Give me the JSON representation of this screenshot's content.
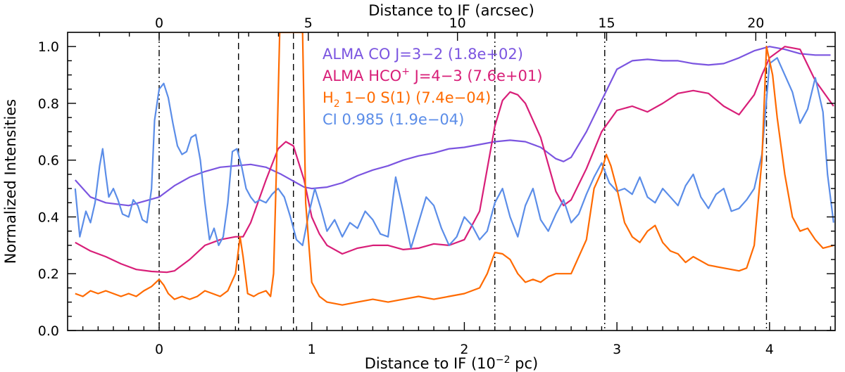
{
  "chart_data": {
    "type": "line",
    "xlabel_bottom": "Distance to IF (10",
    "xlabel_bottom_sup": "−2",
    "xlabel_bottom_end": " pc)",
    "xlabel_top": "Distance to IF (arcsec)",
    "ylabel": "Normalized Intensities",
    "xlim": [
      -0.6,
      4.43
    ],
    "ylim": [
      0.0,
      1.05
    ],
    "x_ticks": [
      0,
      1,
      2,
      3,
      4
    ],
    "x_tick_labels": [
      "0",
      "1",
      "2",
      "3",
      "4"
    ],
    "y_ticks": [
      0.0,
      0.2,
      0.4,
      0.6,
      0.8,
      1.0
    ],
    "y_tick_labels": [
      "0.0",
      "0.2",
      "0.4",
      "0.6",
      "0.8",
      "1.0"
    ],
    "top_ticks_pc": [
      0,
      0.9775,
      1.955,
      2.9325,
      3.91
    ],
    "top_tick_labels": [
      "0",
      "5",
      "10",
      "15",
      "20"
    ],
    "grid": false,
    "legend_position": "top-center",
    "vertical_lines": [
      {
        "x": 0.0,
        "style": "dashdot"
      },
      {
        "x": 0.52,
        "style": "dashed"
      },
      {
        "x": 0.88,
        "style": "dashed"
      },
      {
        "x": 2.2,
        "style": "dashdot"
      },
      {
        "x": 2.92,
        "style": "dashdot"
      },
      {
        "x": 3.98,
        "style": "dashdot"
      }
    ],
    "series": [
      {
        "name": "ALMA CO J=3−2",
        "name_html": "ALMA CO J=3−2 (1.8e+02)",
        "label_parts": [
          "ALMA CO J=3−2 (1.8e+02)"
        ],
        "color": "#7b55e0",
        "x": [
          -0.55,
          -0.45,
          -0.35,
          -0.2,
          -0.1,
          0.0,
          0.1,
          0.2,
          0.3,
          0.4,
          0.5,
          0.6,
          0.7,
          0.8,
          0.9,
          0.95,
          1.0,
          1.1,
          1.2,
          1.3,
          1.4,
          1.5,
          1.6,
          1.7,
          1.8,
          1.9,
          2.0,
          2.1,
          2.2,
          2.3,
          2.4,
          2.5,
          2.6,
          2.65,
          2.7,
          2.8,
          2.9,
          3.0,
          3.1,
          3.2,
          3.3,
          3.4,
          3.5,
          3.6,
          3.7,
          3.8,
          3.9,
          4.0,
          4.1,
          4.2,
          4.3,
          4.4
        ],
        "y": [
          0.53,
          0.47,
          0.45,
          0.44,
          0.455,
          0.47,
          0.51,
          0.54,
          0.56,
          0.575,
          0.58,
          0.585,
          0.575,
          0.55,
          0.52,
          0.505,
          0.5,
          0.505,
          0.52,
          0.545,
          0.565,
          0.58,
          0.6,
          0.615,
          0.625,
          0.64,
          0.645,
          0.655,
          0.665,
          0.67,
          0.665,
          0.645,
          0.605,
          0.595,
          0.61,
          0.7,
          0.81,
          0.92,
          0.95,
          0.955,
          0.95,
          0.95,
          0.94,
          0.935,
          0.94,
          0.96,
          0.985,
          1.0,
          0.99,
          0.975,
          0.97,
          0.97
        ]
      },
      {
        "name": "ALMA HCO+ J=4−3",
        "label_parts": [
          "ALMA HCO",
          "+",
          " J=4−3 (7.6e+01)"
        ],
        "color": "#d81e78",
        "x": [
          -0.55,
          -0.45,
          -0.35,
          -0.25,
          -0.15,
          -0.05,
          0.05,
          0.1,
          0.2,
          0.3,
          0.4,
          0.5,
          0.55,
          0.6,
          0.7,
          0.78,
          0.83,
          0.88,
          0.95,
          1.0,
          1.05,
          1.1,
          1.2,
          1.3,
          1.4,
          1.5,
          1.6,
          1.7,
          1.8,
          1.9,
          2.0,
          2.1,
          2.2,
          2.25,
          2.3,
          2.35,
          2.4,
          2.5,
          2.6,
          2.65,
          2.7,
          2.8,
          2.9,
          3.0,
          3.1,
          3.2,
          3.3,
          3.4,
          3.5,
          3.6,
          3.7,
          3.8,
          3.9,
          3.95,
          4.0,
          4.1,
          4.2,
          4.3,
          4.42
        ],
        "y": [
          0.31,
          0.28,
          0.26,
          0.235,
          0.215,
          0.208,
          0.205,
          0.21,
          0.25,
          0.3,
          0.32,
          0.33,
          0.33,
          0.38,
          0.53,
          0.64,
          0.665,
          0.65,
          0.53,
          0.4,
          0.34,
          0.3,
          0.27,
          0.29,
          0.3,
          0.3,
          0.285,
          0.29,
          0.305,
          0.3,
          0.32,
          0.42,
          0.72,
          0.81,
          0.84,
          0.83,
          0.8,
          0.68,
          0.49,
          0.44,
          0.46,
          0.57,
          0.7,
          0.775,
          0.79,
          0.77,
          0.8,
          0.835,
          0.845,
          0.835,
          0.79,
          0.76,
          0.83,
          0.9,
          0.96,
          1.0,
          0.99,
          0.88,
          0.79
        ]
      },
      {
        "name": "H2 1-0 S(1)",
        "label_parts": [
          "H",
          "2",
          " 1−0 S(1) (7.4e−04)"
        ],
        "color": "#ff6a00",
        "x": [
          -0.55,
          -0.5,
          -0.45,
          -0.4,
          -0.35,
          -0.3,
          -0.25,
          -0.2,
          -0.15,
          -0.1,
          -0.05,
          0.0,
          0.03,
          0.06,
          0.1,
          0.15,
          0.2,
          0.25,
          0.3,
          0.35,
          0.4,
          0.45,
          0.5,
          0.53,
          0.55,
          0.58,
          0.62,
          0.65,
          0.7,
          0.73,
          0.75,
          0.77,
          0.79,
          0.81,
          0.83,
          0.86,
          0.88,
          0.9,
          0.92,
          0.94,
          0.96,
          1.0,
          1.05,
          1.1,
          1.2,
          1.3,
          1.4,
          1.5,
          1.6,
          1.7,
          1.8,
          1.9,
          2.0,
          2.1,
          2.15,
          2.2,
          2.25,
          2.3,
          2.35,
          2.4,
          2.45,
          2.5,
          2.55,
          2.6,
          2.7,
          2.8,
          2.85,
          2.9,
          2.93,
          2.96,
          3.0,
          3.05,
          3.1,
          3.15,
          3.2,
          3.25,
          3.3,
          3.35,
          3.4,
          3.45,
          3.5,
          3.6,
          3.7,
          3.8,
          3.85,
          3.9,
          3.95,
          3.98,
          4.02,
          4.05,
          4.1,
          4.15,
          4.2,
          4.25,
          4.3,
          4.35,
          4.42
        ],
        "y": [
          0.13,
          0.12,
          0.14,
          0.13,
          0.14,
          0.13,
          0.12,
          0.13,
          0.12,
          0.14,
          0.155,
          0.18,
          0.16,
          0.13,
          0.11,
          0.12,
          0.11,
          0.12,
          0.14,
          0.13,
          0.12,
          0.14,
          0.2,
          0.33,
          0.26,
          0.13,
          0.12,
          0.13,
          0.14,
          0.12,
          0.2,
          0.6,
          1.05,
          1.05,
          1.05,
          1.05,
          1.05,
          1.05,
          1.05,
          1.05,
          0.45,
          0.17,
          0.12,
          0.1,
          0.09,
          0.1,
          0.11,
          0.1,
          0.11,
          0.12,
          0.11,
          0.12,
          0.13,
          0.15,
          0.2,
          0.275,
          0.27,
          0.25,
          0.2,
          0.17,
          0.18,
          0.17,
          0.19,
          0.2,
          0.2,
          0.32,
          0.5,
          0.56,
          0.62,
          0.58,
          0.5,
          0.38,
          0.33,
          0.31,
          0.35,
          0.37,
          0.31,
          0.28,
          0.27,
          0.24,
          0.26,
          0.23,
          0.22,
          0.21,
          0.22,
          0.3,
          0.6,
          1.0,
          0.9,
          0.75,
          0.55,
          0.4,
          0.35,
          0.36,
          0.32,
          0.29,
          0.3
        ]
      },
      {
        "name": "CI 0.985",
        "label_parts": [
          "CI 0.985 (1.9e−04)"
        ],
        "color": "#5b8de8",
        "x": [
          -0.55,
          -0.52,
          -0.48,
          -0.45,
          -0.42,
          -0.39,
          -0.37,
          -0.35,
          -0.33,
          -0.3,
          -0.27,
          -0.24,
          -0.2,
          -0.17,
          -0.14,
          -0.11,
          -0.08,
          -0.05,
          -0.03,
          0.0,
          0.03,
          0.06,
          0.09,
          0.12,
          0.15,
          0.18,
          0.21,
          0.24,
          0.27,
          0.3,
          0.33,
          0.36,
          0.39,
          0.42,
          0.45,
          0.48,
          0.51,
          0.54,
          0.57,
          0.6,
          0.63,
          0.66,
          0.7,
          0.74,
          0.78,
          0.82,
          0.86,
          0.9,
          0.94,
          0.98,
          1.02,
          1.06,
          1.1,
          1.15,
          1.2,
          1.25,
          1.3,
          1.35,
          1.4,
          1.45,
          1.5,
          1.55,
          1.6,
          1.65,
          1.7,
          1.75,
          1.8,
          1.85,
          1.9,
          1.95,
          2.0,
          2.05,
          2.1,
          2.15,
          2.2,
          2.25,
          2.3,
          2.35,
          2.4,
          2.45,
          2.5,
          2.55,
          2.6,
          2.65,
          2.7,
          2.75,
          2.8,
          2.85,
          2.9,
          2.95,
          3.0,
          3.05,
          3.1,
          3.15,
          3.2,
          3.25,
          3.3,
          3.35,
          3.4,
          3.45,
          3.5,
          3.55,
          3.6,
          3.65,
          3.7,
          3.75,
          3.8,
          3.85,
          3.9,
          3.95,
          4.0,
          4.05,
          4.1,
          4.15,
          4.2,
          4.25,
          4.3,
          4.35,
          4.38,
          4.42
        ],
        "y": [
          0.5,
          0.33,
          0.42,
          0.38,
          0.45,
          0.58,
          0.64,
          0.55,
          0.47,
          0.5,
          0.46,
          0.41,
          0.4,
          0.46,
          0.44,
          0.39,
          0.38,
          0.5,
          0.74,
          0.85,
          0.87,
          0.82,
          0.73,
          0.65,
          0.62,
          0.63,
          0.68,
          0.69,
          0.6,
          0.45,
          0.32,
          0.36,
          0.3,
          0.33,
          0.45,
          0.63,
          0.64,
          0.58,
          0.5,
          0.47,
          0.45,
          0.46,
          0.45,
          0.48,
          0.5,
          0.47,
          0.4,
          0.32,
          0.3,
          0.41,
          0.5,
          0.43,
          0.35,
          0.39,
          0.33,
          0.38,
          0.36,
          0.42,
          0.39,
          0.34,
          0.33,
          0.54,
          0.42,
          0.29,
          0.38,
          0.47,
          0.44,
          0.36,
          0.3,
          0.33,
          0.4,
          0.37,
          0.32,
          0.35,
          0.45,
          0.5,
          0.4,
          0.33,
          0.44,
          0.5,
          0.39,
          0.35,
          0.41,
          0.46,
          0.38,
          0.41,
          0.48,
          0.54,
          0.59,
          0.52,
          0.49,
          0.5,
          0.48,
          0.54,
          0.47,
          0.45,
          0.5,
          0.47,
          0.44,
          0.51,
          0.55,
          0.47,
          0.43,
          0.48,
          0.5,
          0.42,
          0.43,
          0.46,
          0.5,
          0.62,
          0.94,
          0.96,
          0.9,
          0.84,
          0.73,
          0.78,
          0.89,
          0.77,
          0.55,
          0.38
        ]
      }
    ]
  }
}
